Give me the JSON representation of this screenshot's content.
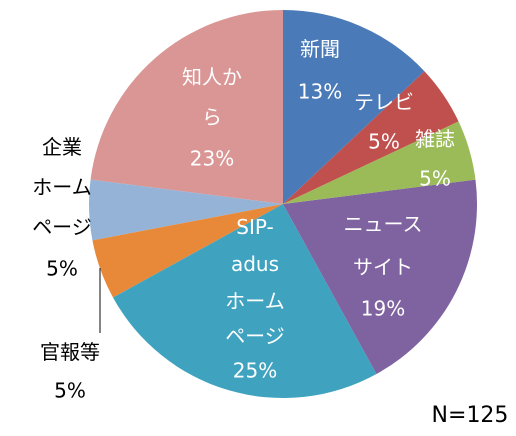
{
  "chart_data": {
    "type": "pie",
    "categories": [
      "新聞",
      "テレビ",
      "雑誌",
      "ニュース\nサイト",
      "SIP-\nadus\nホーム\nページ",
      "官報等",
      "企業\nホーム\nページ",
      "知人か\nら"
    ],
    "values": [
      13,
      5,
      5,
      19,
      25,
      5,
      5,
      23
    ],
    "value_labels": [
      "13%",
      "5%",
      "5%",
      "19%",
      "25%",
      "5%",
      "5%",
      "23%"
    ],
    "colors": [
      "#4a7ab8",
      "#c0504d",
      "#9bbb59",
      "#7f62a0",
      "#3fa3c0",
      "#e8893a",
      "#95b3d7",
      "#d99694"
    ],
    "note": "N=125"
  }
}
